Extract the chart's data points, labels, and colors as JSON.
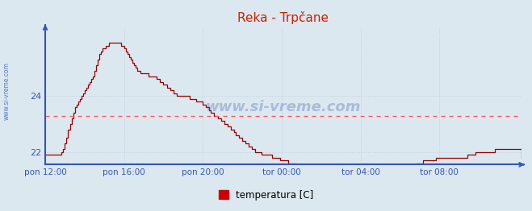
{
  "title": "Reka - Trpčane",
  "ylabel_text": "www.si-vreme.com",
  "legend_label": "temperatura [C]",
  "legend_color": "#cc0000",
  "background_color": "#dce8f0",
  "plot_bg_color": "#dce8f0",
  "line_color": "#990000",
  "hline_color": "#ff5555",
  "hline_y": 23.3,
  "axis_color": "#3355bb",
  "title_color": "#cc2200",
  "tick_label_color": "#3355bb",
  "watermark_color": "#3355aa",
  "grid_color": "#bbccdd",
  "ylim": [
    21.55,
    26.45
  ],
  "yticks": [
    22,
    24
  ],
  "xlabel_ticks": [
    "pon 12:00",
    "pon 16:00",
    "pon 20:00",
    "tor 00:00",
    "tor 04:00",
    "tor 08:00"
  ],
  "x_positions": [
    0,
    48,
    96,
    144,
    192,
    240
  ],
  "total_points": 289,
  "temperature_data": [
    21.9,
    21.9,
    21.9,
    21.9,
    21.9,
    21.9,
    21.9,
    21.9,
    21.9,
    21.9,
    22.0,
    22.1,
    22.3,
    22.5,
    22.8,
    23.0,
    23.2,
    23.4,
    23.6,
    23.7,
    23.8,
    23.9,
    24.0,
    24.1,
    24.2,
    24.3,
    24.4,
    24.5,
    24.6,
    24.7,
    24.9,
    25.1,
    25.3,
    25.5,
    25.6,
    25.7,
    25.7,
    25.8,
    25.8,
    25.9,
    25.9,
    25.9,
    25.9,
    25.9,
    25.9,
    25.9,
    25.8,
    25.8,
    25.7,
    25.6,
    25.5,
    25.4,
    25.3,
    25.2,
    25.1,
    25.0,
    24.9,
    24.9,
    24.8,
    24.8,
    24.8,
    24.8,
    24.8,
    24.7,
    24.7,
    24.7,
    24.7,
    24.7,
    24.6,
    24.6,
    24.5,
    24.5,
    24.4,
    24.4,
    24.3,
    24.3,
    24.2,
    24.2,
    24.1,
    24.1,
    24.0,
    24.0,
    24.0,
    24.0,
    24.0,
    24.0,
    24.0,
    24.0,
    23.9,
    23.9,
    23.9,
    23.9,
    23.8,
    23.8,
    23.8,
    23.8,
    23.7,
    23.7,
    23.6,
    23.6,
    23.5,
    23.4,
    23.4,
    23.3,
    23.3,
    23.2,
    23.2,
    23.1,
    23.1,
    23.0,
    23.0,
    22.9,
    22.9,
    22.8,
    22.8,
    22.7,
    22.6,
    22.6,
    22.5,
    22.5,
    22.4,
    22.4,
    22.3,
    22.3,
    22.2,
    22.2,
    22.1,
    22.1,
    22.0,
    22.0,
    22.0,
    22.0,
    21.9,
    21.9,
    21.9,
    21.9,
    21.9,
    21.9,
    21.8,
    21.8,
    21.8,
    21.8,
    21.8,
    21.7,
    21.7,
    21.7,
    21.7,
    21.7,
    21.6,
    21.6,
    21.6,
    21.6,
    21.6,
    21.5,
    21.5,
    21.5,
    21.5,
    21.5,
    21.4,
    21.4,
    21.4,
    21.4,
    21.3,
    21.3,
    21.3,
    21.3,
    21.2,
    21.2,
    21.2,
    21.2,
    21.2,
    21.1,
    21.1,
    21.1,
    21.1,
    21.1,
    21.0,
    21.0,
    21.0,
    21.0,
    21.0,
    21.0,
    21.0,
    21.0,
    21.0,
    21.0,
    21.0,
    21.0,
    21.0,
    21.0,
    21.0,
    21.0,
    21.0,
    21.0,
    21.0,
    21.0,
    21.0,
    21.0,
    21.0,
    21.0,
    21.0,
    21.0,
    21.0,
    21.1,
    21.1,
    21.1,
    21.1,
    21.1,
    21.1,
    21.2,
    21.2,
    21.2,
    21.2,
    21.2,
    21.3,
    21.3,
    21.3,
    21.3,
    21.3,
    21.2,
    21.3,
    21.4,
    21.5,
    21.5,
    21.5,
    21.5,
    21.6,
    21.6,
    21.6,
    21.6,
    21.7,
    21.7,
    21.7,
    21.7,
    21.7,
    21.7,
    21.7,
    21.7,
    21.8,
    21.8,
    21.8,
    21.8,
    21.8,
    21.8,
    21.8,
    21.8,
    21.8,
    21.8,
    21.8,
    21.8,
    21.8,
    21.8,
    21.8,
    21.8,
    21.8,
    21.8,
    21.8,
    21.9,
    21.9,
    21.9,
    21.9,
    21.9,
    22.0,
    22.0,
    22.0,
    22.0,
    22.0,
    22.0,
    22.0,
    22.0,
    22.0,
    22.0,
    22.0,
    22.0,
    22.1,
    22.1,
    22.1,
    22.1,
    22.1,
    22.1,
    22.1,
    22.1,
    22.1,
    22.1,
    22.1,
    22.1,
    22.1,
    22.1,
    22.1,
    22.1,
    21.8
  ]
}
